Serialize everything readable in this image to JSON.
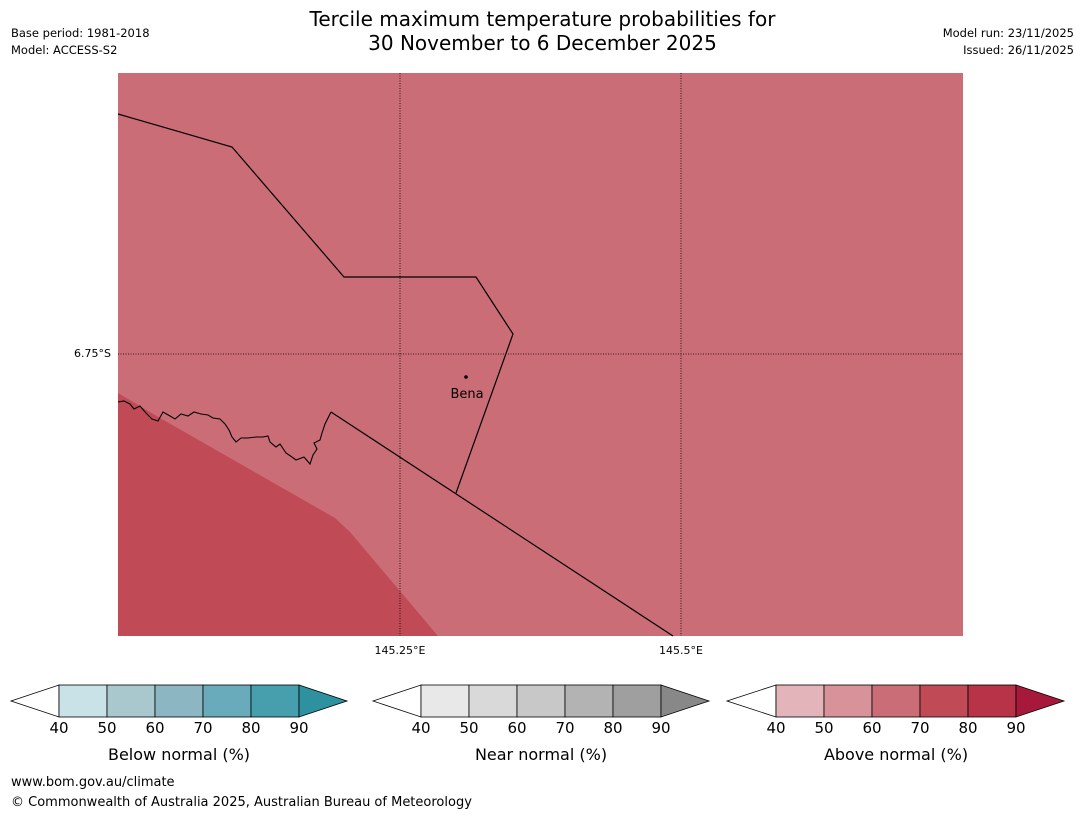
{
  "title": {
    "line1": "Tercile maximum temperature probabilities for",
    "line2": "30 November to 6 December 2025"
  },
  "meta_left": {
    "base_period": "Base period: 1981-2018",
    "model": "Model: ACCESS-S2"
  },
  "meta_right": {
    "model_run": "Model run: 23/11/2025",
    "issued": "Issued: 26/11/2025"
  },
  "map": {
    "latitude_label": "6.75°S",
    "longitude_labels": [
      "145.25°E",
      "145.5°E"
    ],
    "town": "Bena",
    "colors": {
      "above_60_70": "#cb6d76",
      "above_70_80": "#c04b57"
    }
  },
  "colorbars": [
    {
      "label": "Below normal (%)",
      "ticks": [
        "40",
        "50",
        "60",
        "70",
        "80",
        "90"
      ],
      "colors": [
        "#c9e2e7",
        "#a8c8cd",
        "#8bb6c2",
        "#6aabbb",
        "#479fae",
        "#2e91a0"
      ]
    },
    {
      "label": "Near normal (%)",
      "ticks": [
        "40",
        "50",
        "60",
        "70",
        "80",
        "90"
      ],
      "colors": [
        "#e8e8e8",
        "#d9d9d9",
        "#c8c8c8",
        "#b3b3b3",
        "#9f9f9f",
        "#888888"
      ]
    },
    {
      "label": "Above normal (%)",
      "ticks": [
        "40",
        "50",
        "60",
        "70",
        "80",
        "90"
      ],
      "colors": [
        "#e3b5bb",
        "#d8939a",
        "#cb6d76",
        "#c04b57",
        "#b83348",
        "#a6193a"
      ]
    }
  ],
  "footer": {
    "url": "www.bom.gov.au/climate",
    "copyright": "© Commonwealth of Australia 2025, Australian Bureau of Meteorology"
  }
}
